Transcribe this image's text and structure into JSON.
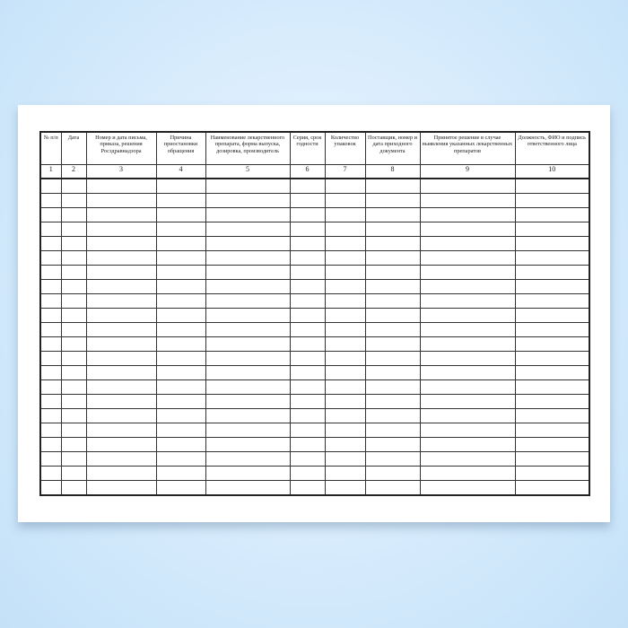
{
  "form": {
    "headers": [
      "№ п/п",
      "Дата",
      "Номер и дата письма, приказа, решения Росздравнадзора",
      "Причина приостановки обращения",
      "Наименование лекарственного препарата, форма выпуска, дозировка, производитель",
      "Серия, срок годности",
      "Количество упаковок",
      "Поставщик, номер и дата приходного документа",
      "Принятое решение в случае выявления указанных лекарственных препаратов",
      "Должность, ФИО и подпись ответственного лица"
    ],
    "column_numbers": [
      "1",
      "2",
      "3",
      "4",
      "5",
      "6",
      "7",
      "8",
      "9",
      "10"
    ],
    "empty_row_count": 22
  },
  "colors": {
    "background": "#d6ebfc",
    "paper": "#ffffff",
    "lines": "#333333"
  }
}
